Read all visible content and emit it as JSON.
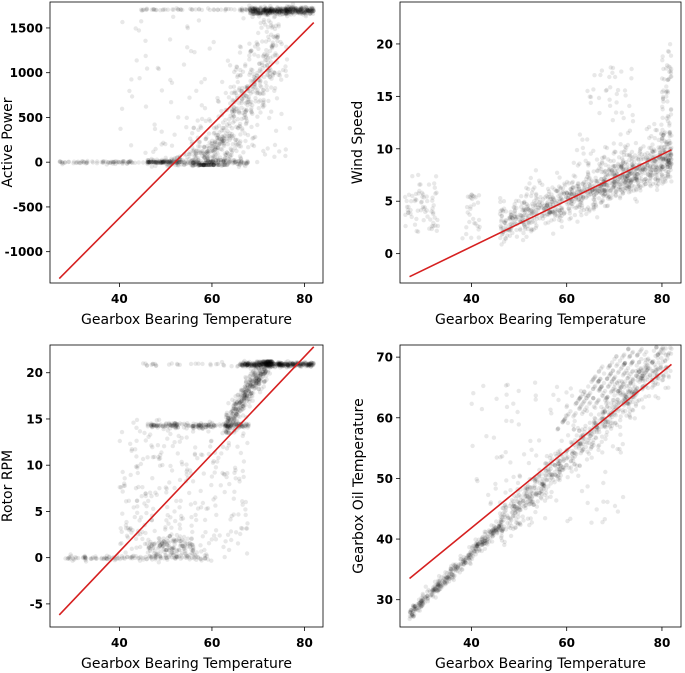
{
  "figure": "Gearbox bearing temperature vs turbine variables (scatter with linear fit)",
  "colors": {
    "points": "#000000",
    "fit": "#d62020",
    "frame": "#000000"
  },
  "chart_data": [
    {
      "type": "scatter",
      "id": "active-power",
      "xlabel": "Gearbox Bearing Temperature",
      "ylabel": "Active Power",
      "xlim": [
        25,
        84
      ],
      "ylim": [
        -1350,
        1790
      ],
      "xticks": [
        40,
        60,
        80
      ],
      "yticks": [
        1500,
        1000,
        500,
        0,
        -500,
        -1000
      ],
      "ytick_labels": [
        "1500",
        "1000",
        "500",
        "0",
        "-500",
        "-1000"
      ],
      "fit_line": [
        [
          27,
          -1300
        ],
        [
          82,
          1560
        ]
      ],
      "description_points": "dense cloud: near 0 for 27-60, rising steeply 60-72, saturating near 1700 at 70-82"
    },
    {
      "type": "scatter",
      "id": "wind-speed",
      "xlabel": "Gearbox Bearing Temperature",
      "ylabel": "Wind Speed",
      "xlim": [
        25,
        84
      ],
      "ylim": [
        -2.8,
        24
      ],
      "xticks": [
        40,
        60,
        80
      ],
      "yticks": [
        20,
        15,
        10,
        5,
        0
      ],
      "ytick_labels": [
        "20",
        "15",
        "10",
        "5",
        "0"
      ],
      "fit_line": [
        [
          27,
          -2.2
        ],
        [
          82,
          9.9
        ]
      ],
      "description_points": "band rising from ~2.5 at 47 to ~9 at 80 with spikes up to ~20 near 82"
    },
    {
      "type": "scatter",
      "id": "rotor-rpm",
      "xlabel": "Gearbox Bearing Temperature",
      "ylabel": "Rotor RPM",
      "xlim": [
        25,
        84
      ],
      "ylim": [
        -7.5,
        23
      ],
      "xticks": [
        40,
        60,
        80
      ],
      "yticks": [
        20,
        15,
        10,
        5,
        0,
        -5
      ],
      "ytick_labels": [
        "20",
        "15",
        "10",
        "5",
        "0",
        "-5"
      ],
      "fit_line": [
        [
          27,
          -6.2
        ],
        [
          82,
          22.8
        ]
      ],
      "description_points": "cluster at 0 (27-60), band at ~14.3 (46-66), rising to ~21 plateau (68-82)"
    },
    {
      "type": "scatter",
      "id": "gearbox-oil-temperature",
      "xlabel": "Gearbox Bearing Temperature",
      "ylabel": "Gearbox Oil Temperature",
      "xlim": [
        25,
        84
      ],
      "ylim": [
        25.5,
        72
      ],
      "xticks": [
        40,
        60,
        80
      ],
      "yticks": [
        70,
        60,
        50,
        40,
        30
      ],
      "ytick_labels": [
        "70",
        "60",
        "50",
        "40",
        "30"
      ],
      "fit_line": [
        [
          27,
          33.5
        ],
        [
          82,
          68.8
        ]
      ],
      "description_points": "tight diagonal band from (27,27.5) to (82,70.5) with diagonal streaks above"
    }
  ]
}
